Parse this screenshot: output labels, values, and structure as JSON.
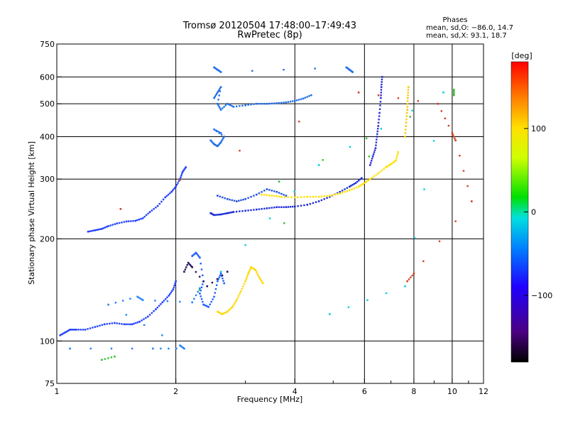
{
  "chart_data": {
    "type": "scatter",
    "title": "Tromsø 20120504 17:48:00–17:49:43",
    "subtitle": "RwPretec (8p)",
    "xlabel": "Frequency [MHz]",
    "ylabel": "Stationary phase Virtual Height [km]",
    "x_scale": "log",
    "y_scale": "log",
    "xlim": [
      1,
      12
    ],
    "ylim": [
      75,
      750
    ],
    "x_ticks": [
      1,
      2,
      4,
      6,
      8,
      10,
      12
    ],
    "y_ticks": [
      75,
      100,
      200,
      300,
      400,
      500,
      600,
      750
    ],
    "x_ticks_minor": [
      3,
      5,
      7,
      9,
      11
    ],
    "grid_x": [
      2,
      4,
      6,
      8,
      10
    ],
    "grid_y": [
      100,
      200,
      300,
      400,
      500,
      600
    ],
    "grid": true,
    "phases_box": {
      "title": "Phases",
      "line_o": "mean, sd,O: −86.0, 14.7",
      "line_x": "mean, sd,X:  93.1, 18.7"
    },
    "colorbar": {
      "label": "[deg]",
      "range": [
        -180,
        180
      ],
      "ticks": [
        100,
        0,
        -100
      ],
      "tick_labels": [
        "100",
        "0",
        "−100"
      ],
      "colormap": "rainbow"
    },
    "series": [
      {
        "phase": -100,
        "color": "#2040ff",
        "points": [
          [
            1.02,
            104
          ],
          [
            1.05,
            106
          ],
          [
            1.08,
            108
          ],
          [
            1.12,
            108
          ],
          [
            1.18,
            108
          ],
          [
            1.25,
            110
          ],
          [
            1.32,
            112
          ],
          [
            1.4,
            113
          ],
          [
            1.48,
            112
          ],
          [
            1.55,
            112
          ],
          [
            1.62,
            114
          ],
          [
            1.7,
            118
          ],
          [
            1.78,
            124
          ],
          [
            1.85,
            130
          ],
          [
            1.92,
            136
          ],
          [
            1.97,
            142
          ],
          [
            2.0,
            150
          ]
        ]
      },
      {
        "phase": -100,
        "color": "#2040ff",
        "points": [
          [
            1.2,
            210
          ],
          [
            1.25,
            212
          ],
          [
            1.3,
            214
          ],
          [
            1.35,
            218
          ],
          [
            1.42,
            222
          ],
          [
            1.5,
            225
          ],
          [
            1.58,
            226
          ],
          [
            1.65,
            230
          ],
          [
            1.72,
            240
          ],
          [
            1.8,
            250
          ],
          [
            1.88,
            265
          ],
          [
            1.95,
            275
          ],
          [
            2.0,
            285
          ],
          [
            2.05,
            300
          ],
          [
            2.08,
            315
          ],
          [
            2.12,
            325
          ]
        ]
      },
      {
        "phase": -110,
        "color": "#1a2bd9",
        "points": [
          [
            2.45,
            238
          ],
          [
            2.5,
            235
          ],
          [
            2.6,
            236
          ],
          [
            2.7,
            238
          ],
          [
            2.8,
            240
          ],
          [
            3.0,
            242
          ],
          [
            3.2,
            244
          ],
          [
            3.4,
            246
          ],
          [
            3.6,
            248
          ],
          [
            3.8,
            248
          ],
          [
            4.0,
            249
          ],
          [
            4.3,
            252
          ],
          [
            4.6,
            258
          ],
          [
            4.9,
            266
          ],
          [
            5.2,
            275
          ],
          [
            5.5,
            285
          ],
          [
            5.7,
            292
          ],
          [
            5.9,
            302
          ]
        ]
      },
      {
        "phase": -100,
        "color": "#1f4fe0",
        "points": [
          [
            2.55,
            268
          ],
          [
            2.7,
            262
          ],
          [
            2.85,
            258
          ],
          [
            3.0,
            262
          ],
          [
            3.2,
            270
          ],
          [
            3.4,
            280
          ],
          [
            3.6,
            275
          ],
          [
            3.8,
            268
          ]
        ]
      },
      {
        "phase": -90,
        "color": "#1e6eea",
        "points": [
          [
            2.5,
            520
          ],
          [
            2.55,
            540
          ],
          [
            2.6,
            560
          ],
          [
            2.55,
            500
          ],
          [
            2.6,
            480
          ],
          [
            2.7,
            500
          ],
          [
            2.8,
            490
          ],
          [
            3.0,
            495
          ],
          [
            3.2,
            500
          ],
          [
            3.4,
            500
          ],
          [
            3.6,
            502
          ],
          [
            3.8,
            505
          ],
          [
            4.0,
            510
          ],
          [
            4.2,
            518
          ],
          [
            4.4,
            530
          ]
        ]
      },
      {
        "phase": -90,
        "color": "#1e6eea",
        "points": [
          [
            2.45,
            390
          ],
          [
            2.5,
            380
          ],
          [
            2.55,
            375
          ],
          [
            2.6,
            385
          ],
          [
            2.65,
            400
          ],
          [
            2.5,
            420
          ],
          [
            2.6,
            410
          ]
        ]
      },
      {
        "phase": -90,
        "color": "#1e6eea",
        "points": [
          [
            2.5,
            640
          ],
          [
            2.55,
            630
          ],
          [
            2.6,
            620
          ],
          [
            5.4,
            640
          ],
          [
            5.5,
            630
          ],
          [
            5.6,
            620
          ]
        ]
      },
      {
        "phase": -110,
        "color": "#2a2fd0",
        "points": [
          [
            6.2,
            330
          ],
          [
            6.3,
            350
          ],
          [
            6.4,
            370
          ],
          [
            6.45,
            400
          ],
          [
            6.5,
            430
          ],
          [
            6.55,
            470
          ],
          [
            6.6,
            520
          ],
          [
            6.62,
            560
          ],
          [
            6.65,
            600
          ]
        ]
      },
      {
        "phase": 100,
        "color": "#ffe000",
        "points": [
          [
            3.3,
            270
          ],
          [
            3.5,
            268
          ],
          [
            3.7,
            266
          ],
          [
            4.0,
            265
          ],
          [
            4.3,
            266
          ],
          [
            4.6,
            266
          ],
          [
            4.9,
            268
          ],
          [
            5.2,
            272
          ],
          [
            5.5,
            278
          ],
          [
            5.8,
            285
          ],
          [
            6.0,
            292
          ],
          [
            6.2,
            300
          ],
          [
            6.5,
            312
          ],
          [
            6.8,
            325
          ],
          [
            7.0,
            332
          ],
          [
            7.2,
            340
          ],
          [
            7.3,
            360
          ]
        ]
      },
      {
        "phase": 100,
        "color": "#ffc800",
        "points": [
          [
            7.6,
            400
          ],
          [
            7.65,
            440
          ],
          [
            7.7,
            480
          ],
          [
            7.72,
            520
          ],
          [
            7.75,
            560
          ]
        ]
      },
      {
        "phase": 110,
        "color": "#ffd700",
        "points": [
          [
            2.55,
            122
          ],
          [
            2.62,
            120
          ],
          [
            2.7,
            122
          ],
          [
            2.78,
            126
          ],
          [
            2.85,
            132
          ],
          [
            2.92,
            140
          ],
          [
            3.0,
            150
          ],
          [
            3.05,
            158
          ],
          [
            3.1,
            165
          ],
          [
            3.18,
            162
          ],
          [
            3.25,
            154
          ],
          [
            3.32,
            148
          ]
        ]
      },
      {
        "phase": -90,
        "color": "#2060ff",
        "points": [
          [
            2.2,
            178
          ],
          [
            2.25,
            182
          ],
          [
            2.3,
            176
          ],
          [
            2.35,
            150
          ],
          [
            2.3,
            138
          ],
          [
            2.35,
            128
          ],
          [
            2.42,
            126
          ],
          [
            2.5,
            135
          ],
          [
            2.55,
            150
          ],
          [
            2.6,
            158
          ],
          [
            2.65,
            148
          ]
        ]
      },
      {
        "phase": -150,
        "color": "#201060",
        "points": [
          [
            2.1,
            160
          ],
          [
            2.15,
            170
          ],
          [
            2.2,
            165
          ],
          [
            2.4,
            145
          ],
          [
            2.7,
            160
          ]
        ]
      },
      {
        "phase": 180,
        "color": "#d04020",
        "points": [
          [
            1.45,
            245
          ],
          [
            5.8,
            540
          ],
          [
            9.2,
            500
          ],
          [
            10.0,
            410
          ],
          [
            10.2,
            390
          ],
          [
            11.2,
            258
          ],
          [
            7.7,
            150
          ],
          [
            8.0,
            158
          ]
        ]
      },
      {
        "phase": 40,
        "color": "#30c030",
        "points": [
          [
            1.3,
            88
          ],
          [
            1.4,
            90
          ],
          [
            10.1,
            550
          ],
          [
            10.1,
            530
          ],
          [
            3.65,
            295
          ]
        ]
      },
      {
        "phase": 0,
        "color": "#00d0e0",
        "points": [
          [
            4.9,
            120
          ],
          [
            7.6,
            145
          ],
          [
            9.5,
            540
          ],
          [
            4.6,
            330
          ],
          [
            2.6,
            160
          ]
        ]
      },
      {
        "phase": -80,
        "color": "#2080ff",
        "points": [
          [
            1.08,
            95
          ],
          [
            1.75,
            95
          ],
          [
            2.1,
            95
          ],
          [
            2.05,
            97
          ],
          [
            1.35,
            128
          ],
          [
            1.6,
            135
          ],
          [
            1.65,
            132
          ],
          [
            2.2,
            130
          ],
          [
            2.3,
            143
          ]
        ]
      }
    ]
  }
}
